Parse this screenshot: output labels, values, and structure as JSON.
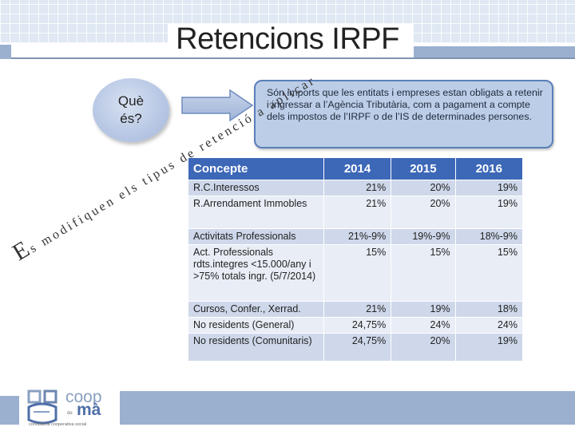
{
  "slide": {
    "title": "Retencions IRPF",
    "question": "Què\nés?",
    "definition": "Són imports que les entitats i empreses estan obligats a retenir i ingressar a l’Agència Tributària, com a pagament a compte dels impostos de  l’IRPF o de l’IS de determinades persones.",
    "diagonal_first": "E",
    "diagonal_rest": "s modifiquen els tipus de retenció a aplicar"
  },
  "table": {
    "headers": [
      "Concepte",
      "2014",
      "2015",
      "2016"
    ],
    "rows": [
      {
        "concept": "R.C.Interessos",
        "y2014": "21%",
        "y2015": "20%",
        "y2016": "19%"
      },
      {
        "concept": "R.Arrendament Immobles",
        "y2014": "21%",
        "y2015": "20%",
        "y2016": "19%"
      },
      {
        "concept": "Activitats  Professionals",
        "y2014": "21%-9%",
        "y2015": "19%-9%",
        "y2016": "18%-9%"
      },
      {
        "concept": "Act. Professionals rdts.integres <15.000/any  i >75% totals ingr. (5/7/2014)",
        "y2014": "15%",
        "y2015": "15%",
        "y2016": "15%"
      },
      {
        "concept": "Cursos, Confer., Xerrad.",
        "y2014": "21%",
        "y2015": "19%",
        "y2016": "18%"
      },
      {
        "concept": "No residents  (General)",
        "y2014": "24,75%",
        "y2015": "24%",
        "y2016": "24%"
      },
      {
        "concept": "No residents (Comunitaris)",
        "y2014": "24,75%",
        "y2015": "20%",
        "y2016": "19%"
      }
    ]
  },
  "logo": {
    "coop": "coop",
    "de": "de",
    "ma": "mà",
    "subtitle": "consultoria cooperativa social"
  },
  "colors": {
    "header_blue": "#3d68b8",
    "row_dark": "#ced8ea",
    "row_light": "#e8edf6",
    "band": "#9bb0cf"
  }
}
